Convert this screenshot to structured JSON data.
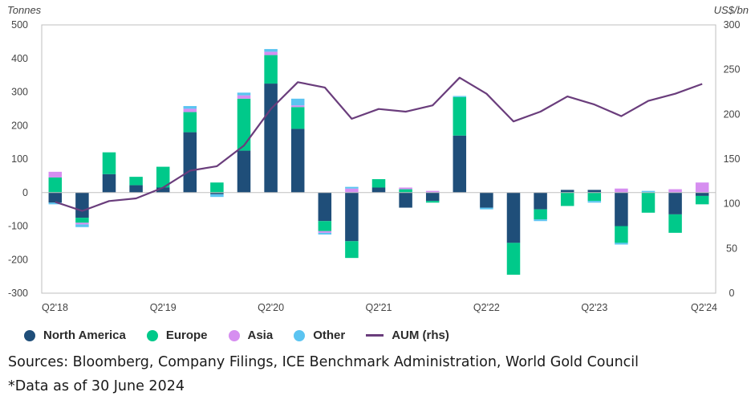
{
  "chart_data": {
    "type": "bar",
    "stacked": true,
    "categories": [
      "Q2'18",
      "Q3'18",
      "Q4'18",
      "Q1'19",
      "Q2'19",
      "Q3'19",
      "Q4'19",
      "Q1'20",
      "Q2'20",
      "Q3'20",
      "Q4'20",
      "Q1'21",
      "Q2'21",
      "Q3'21",
      "Q4'21",
      "Q1'22",
      "Q2'22",
      "Q3'22",
      "Q4'22",
      "Q1'23",
      "Q2'23",
      "Q3'23",
      "Q4'23",
      "Q1'24",
      "Q2'24"
    ],
    "x_tick_labels": [
      "Q2'18",
      "Q2'19",
      "Q2'20",
      "Q2'21",
      "Q2'22",
      "Q2'23",
      "Q2'24"
    ],
    "y_left_unit": "Tonnes",
    "y_right_unit": "US$/bn",
    "y_left_ticks": [
      500,
      400,
      300,
      200,
      100,
      0,
      -100,
      -200,
      -300
    ],
    "y_right_ticks": [
      300,
      250,
      200,
      150,
      100,
      50,
      0
    ],
    "ylim_left": [
      -300,
      500
    ],
    "ylim_right": [
      0,
      300
    ],
    "series": [
      {
        "name": "North America",
        "color": "#1f4e79",
        "values": [
          -30,
          -75,
          55,
          22,
          15,
          180,
          -5,
          125,
          325,
          190,
          -85,
          -145,
          15,
          -45,
          -25,
          170,
          -45,
          -150,
          -50,
          8,
          8,
          -100,
          0,
          -65,
          -10
        ]
      },
      {
        "name": "Europe",
        "color": "#00c98a",
        "values": [
          45,
          -15,
          65,
          25,
          62,
          60,
          30,
          155,
          85,
          65,
          -30,
          -50,
          25,
          10,
          -5,
          115,
          0,
          -95,
          -30,
          -40,
          -25,
          -50,
          -60,
          -55,
          -25
        ]
      },
      {
        "name": "Asia",
        "color": "#d68ef0",
        "values": [
          17,
          -5,
          0,
          0,
          0,
          10,
          0,
          10,
          10,
          5,
          -5,
          12,
          0,
          5,
          5,
          0,
          0,
          0,
          0,
          0,
          0,
          12,
          0,
          10,
          30
        ]
      },
      {
        "name": "Other",
        "color": "#5bc4f1",
        "values": [
          -5,
          -8,
          0,
          0,
          0,
          8,
          -8,
          8,
          8,
          20,
          -5,
          5,
          0,
          0,
          0,
          3,
          -5,
          0,
          -5,
          0,
          -5,
          -5,
          5,
          0,
          0
        ]
      }
    ],
    "line": {
      "name": "AUM (rhs)",
      "color": "#6a3d7c",
      "values": [
        102,
        92,
        103,
        106,
        118,
        137,
        142,
        165,
        206,
        236,
        230,
        195,
        206,
        203,
        210,
        241,
        223,
        192,
        203,
        220,
        211,
        198,
        215,
        223,
        234
      ]
    },
    "legend_position": "bottom-left",
    "grid": false
  },
  "notes": {
    "sources": "Sources: Bloomberg, Company Filings, ICE Benchmark Administration, World Gold Council",
    "data_as_of": "*Data as of 30 June 2024"
  }
}
